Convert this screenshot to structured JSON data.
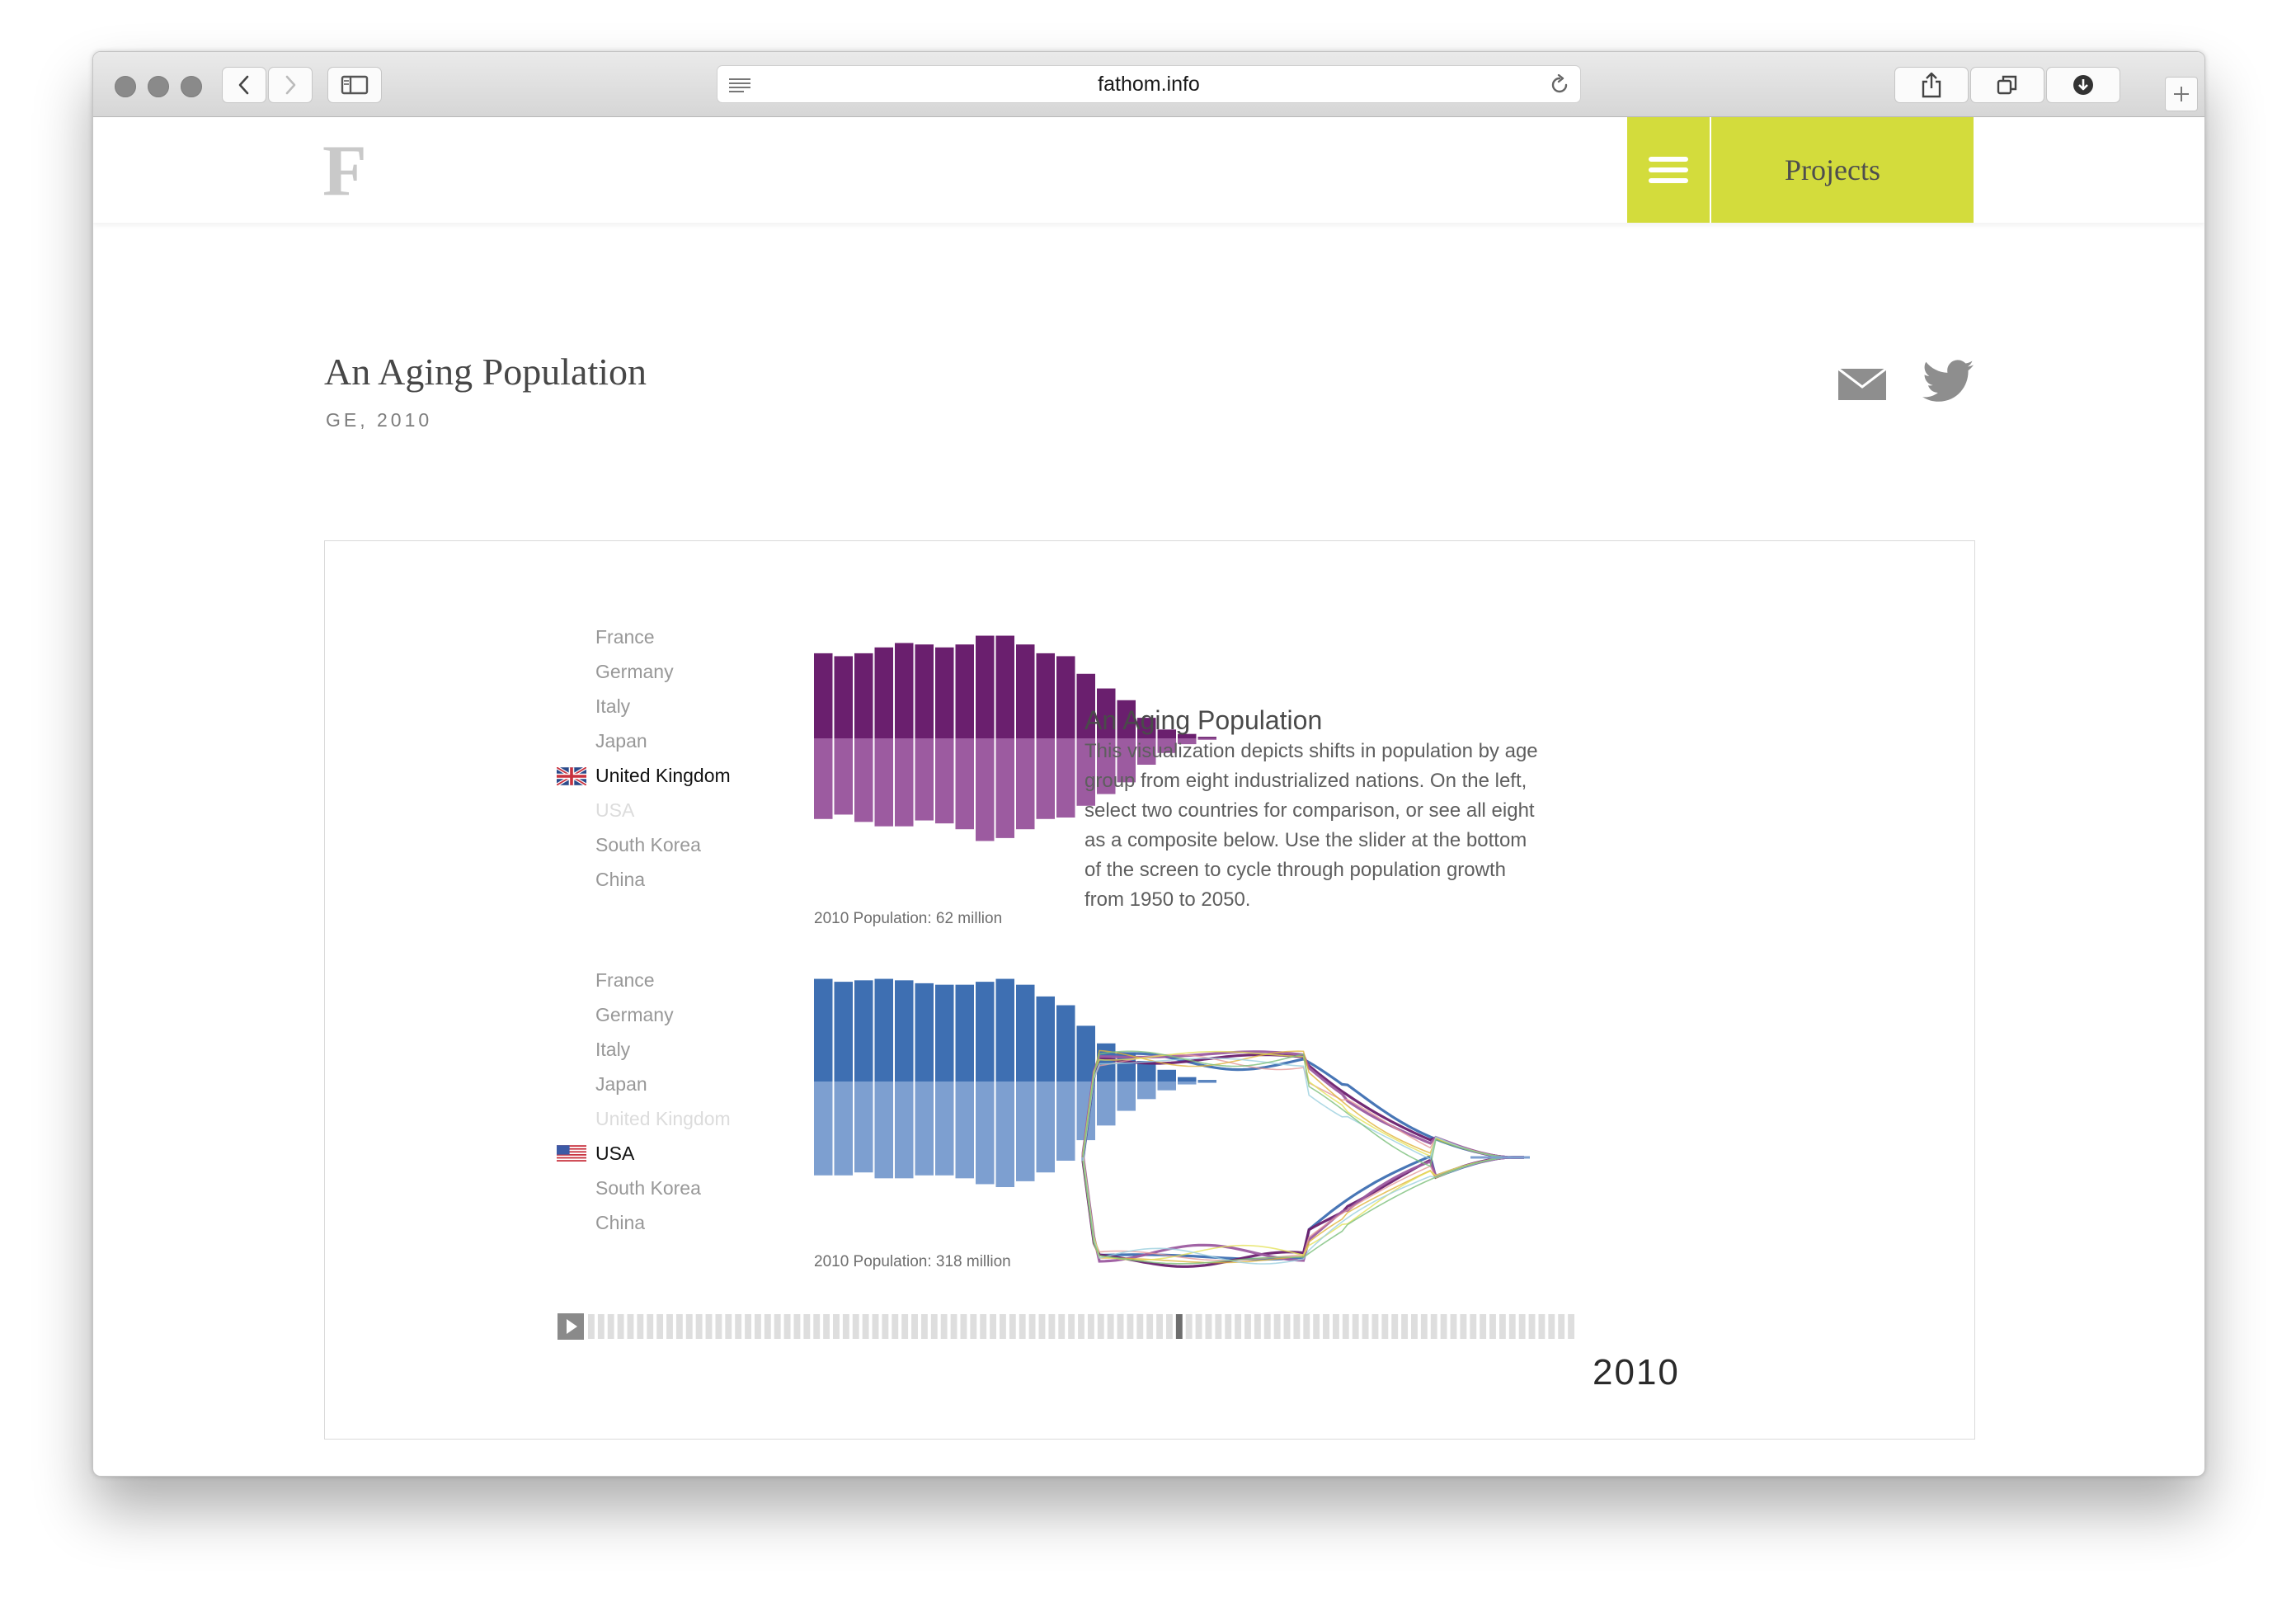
{
  "browser": {
    "url": "fathom.info"
  },
  "site": {
    "logo": "F",
    "menu_label": "Projects"
  },
  "project": {
    "title": "An Aging Population",
    "subtitle": "GE, 2010"
  },
  "viz": {
    "countries": [
      "France",
      "Germany",
      "Italy",
      "Japan",
      "United Kingdom",
      "USA",
      "South Korea",
      "China"
    ],
    "top_selected": "United Kingdom",
    "top_disabled": "USA",
    "bottom_selected": "USA",
    "bottom_disabled": "United Kingdom",
    "description_title": "An Aging Population",
    "description": "This visualization depicts shifts in population by age group from eight industrialized nations. On the left, select two countries for comparison, or see all eight as a composite below. Use the slider at the bottom of the screen to cycle through population growth from 1950 to 2050.",
    "year": "2010",
    "colors": {
      "uk_upper": "#6a1f6e",
      "uk_lower": "#9c5ba0",
      "usa_upper": "#3e6fb2",
      "usa_lower": "#7d9fd0"
    }
  },
  "chart_data": [
    {
      "type": "bar",
      "caption": "2010 Population: 62 million",
      "series": [
        {
          "values": [
            58,
            56,
            58,
            62,
            65,
            64,
            62,
            64,
            70,
            70,
            64,
            58,
            56,
            44,
            34,
            26,
            14,
            6,
            3,
            1
          ]
        },
        {
          "values": [
            55,
            52,
            57,
            60,
            60,
            56,
            58,
            62,
            70,
            68,
            62,
            55,
            54,
            46,
            38,
            30,
            18,
            10,
            4,
            1
          ]
        }
      ]
    },
    {
      "type": "bar",
      "caption": "2010 Population: 318 million",
      "series": [
        {
          "values": [
            70,
            68,
            69,
            70,
            69,
            67,
            66,
            66,
            68,
            70,
            66,
            58,
            52,
            38,
            26,
            20,
            14,
            8,
            3,
            1
          ]
        },
        {
          "values": [
            64,
            64,
            62,
            66,
            66,
            64,
            64,
            66,
            70,
            72,
            68,
            62,
            54,
            40,
            30,
            20,
            12,
            6,
            2,
            1
          ]
        }
      ]
    },
    {
      "type": "line",
      "series": [
        {
          "color": "#3e6fb2"
        },
        {
          "color": "#6a1f6e"
        },
        {
          "color": "#9c5ba0"
        },
        {
          "color": "#e59a9a"
        },
        {
          "color": "#e0b33a"
        },
        {
          "color": "#e3e25a"
        },
        {
          "color": "#9bd0de"
        },
        {
          "color": "#7cbf7a"
        }
      ]
    }
  ]
}
